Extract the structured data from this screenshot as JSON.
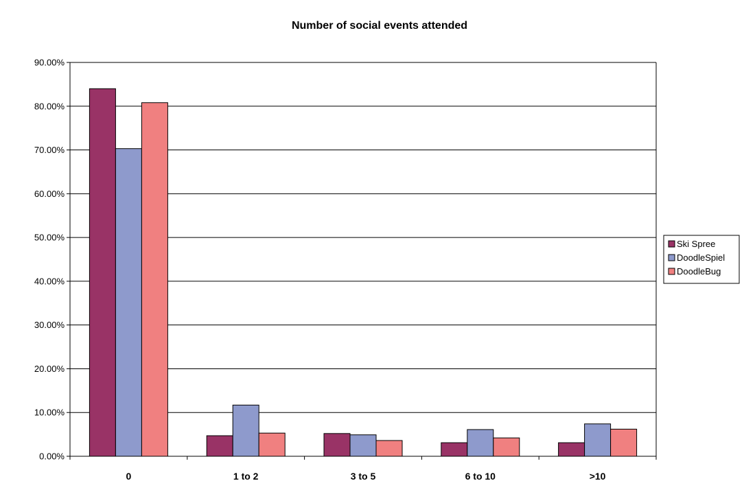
{
  "chart_data": {
    "type": "bar",
    "title": "Number of social events attended",
    "xlabel": "",
    "ylabel": "",
    "categories": [
      "0",
      "1 to 2",
      "3 to 5",
      "6 to 10",
      ">10"
    ],
    "series": [
      {
        "name": "Ski Spree",
        "color": "#993366",
        "values": [
          0.84,
          0.047,
          0.052,
          0.031,
          0.031
        ]
      },
      {
        "name": "DoodleSpiel",
        "color": "#8E9ACC",
        "values": [
          0.703,
          0.117,
          0.049,
          0.061,
          0.074
        ]
      },
      {
        "name": "DoodleBug",
        "color": "#F08080",
        "values": [
          0.808,
          0.053,
          0.036,
          0.042,
          0.062
        ]
      }
    ],
    "ylim": [
      0,
      0.9
    ],
    "yticks": [
      "0.00%",
      "10.00%",
      "20.00%",
      "30.00%",
      "40.00%",
      "50.00%",
      "60.00%",
      "70.00%",
      "80.00%",
      "90.00%"
    ],
    "grid": true,
    "legend_position": "right"
  }
}
